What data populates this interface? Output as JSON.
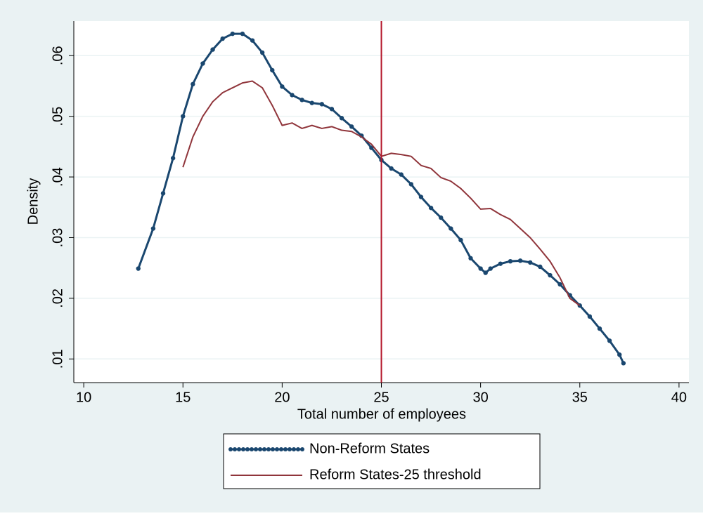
{
  "chart_data": {
    "type": "line",
    "xlabel": "Total number of employees",
    "ylabel": "Density",
    "xlim": [
      9.5,
      40.5
    ],
    "xticks": [
      10,
      15,
      20,
      25,
      30,
      35,
      40
    ],
    "ylim": [
      0.0061,
      0.0657
    ],
    "yticks": [
      {
        "value": 0.01,
        "label": ".01"
      },
      {
        "value": 0.02,
        "label": ".02"
      },
      {
        "value": 0.03,
        "label": ".03"
      },
      {
        "value": 0.04,
        "label": ".04"
      },
      {
        "value": 0.05,
        "label": ".05"
      },
      {
        "value": 0.06,
        "label": ".06"
      }
    ],
    "grid": true,
    "xline": 25,
    "xline_color": "#b5182c",
    "legend": "bottom",
    "series": [
      {
        "name": "Non-Reform States",
        "color": "#1a476f",
        "markers": true,
        "x": [
          12.75,
          13.5,
          14,
          14.5,
          15,
          15.5,
          16,
          16.5,
          17,
          17.5,
          18,
          18.5,
          19,
          19.5,
          20,
          20.5,
          21,
          21.5,
          22,
          22.5,
          23,
          23.5,
          24,
          24.5,
          25,
          25.5,
          26,
          26.5,
          27,
          27.5,
          28,
          28.5,
          29,
          29.5,
          30,
          30.25,
          30.5,
          31,
          31.5,
          32,
          32.5,
          33,
          33.5,
          34,
          34.5,
          35,
          35.5,
          36,
          36.5,
          37,
          37.2
        ],
        "values": [
          0.0249,
          0.0315,
          0.0373,
          0.0431,
          0.05,
          0.0553,
          0.0587,
          0.061,
          0.0628,
          0.0636,
          0.0636,
          0.0625,
          0.0605,
          0.0576,
          0.0549,
          0.0535,
          0.0527,
          0.0522,
          0.052,
          0.0512,
          0.0497,
          0.0483,
          0.0468,
          0.0448,
          0.0428,
          0.0414,
          0.0404,
          0.0388,
          0.0367,
          0.0349,
          0.0333,
          0.0315,
          0.0296,
          0.0266,
          0.0249,
          0.0242,
          0.0249,
          0.0257,
          0.0261,
          0.0262,
          0.0259,
          0.0252,
          0.0238,
          0.0223,
          0.0205,
          0.0188,
          0.017,
          0.015,
          0.013,
          0.0107,
          0.0093
        ]
      },
      {
        "name": "Reform States-25 threshold",
        "color": "#90353b",
        "markers": false,
        "x": [
          15,
          15.5,
          16,
          16.5,
          17,
          17.5,
          18,
          18.5,
          19,
          19.5,
          20,
          20.5,
          21,
          21.5,
          22,
          22.5,
          23,
          23.5,
          24,
          24.5,
          25,
          25.5,
          26,
          26.5,
          27,
          27.5,
          28,
          28.5,
          29,
          29.5,
          30,
          30.5,
          31,
          31.5,
          32,
          32.5,
          33,
          33.5,
          34,
          34.5,
          35
        ],
        "values": [
          0.0416,
          0.0466,
          0.05,
          0.0524,
          0.0539,
          0.0547,
          0.0555,
          0.0558,
          0.0547,
          0.0518,
          0.0485,
          0.0489,
          0.048,
          0.0485,
          0.048,
          0.0483,
          0.0477,
          0.0475,
          0.0466,
          0.0454,
          0.0434,
          0.0439,
          0.0437,
          0.0434,
          0.0419,
          0.0414,
          0.0399,
          0.0393,
          0.0381,
          0.0365,
          0.0347,
          0.0348,
          0.0338,
          0.033,
          0.0315,
          0.03,
          0.0281,
          0.0261,
          0.0234,
          0.02,
          0.0188
        ]
      }
    ]
  }
}
